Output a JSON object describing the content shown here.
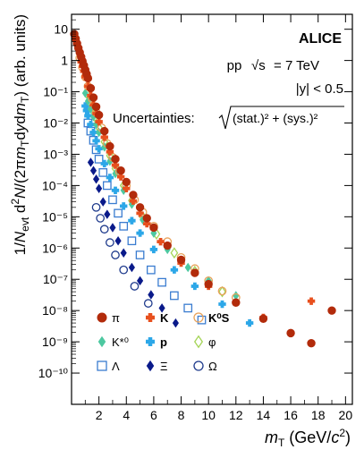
{
  "chart_data": {
    "type": "scatter",
    "experiment": "ALICE",
    "annotations": {
      "system": "pp",
      "energy": "7 TeV",
      "sqrt_s": "√s",
      "rapidity": "|y| < 0.5",
      "uncertainties": "Uncertainties:",
      "unc_formula": "(stat.)² + (sys.)²"
    },
    "xlabel": "m_T (GeV/c²)",
    "ylabel": "1/N_evt d²N/(2πm_T dy dm_T) (arb. units)",
    "xlim": [
      0,
      20.5
    ],
    "ylim": [
      1e-11,
      30
    ],
    "y_scale": "log",
    "x_ticks": [
      2,
      4,
      6,
      8,
      10,
      12,
      14,
      16,
      18,
      20
    ],
    "y_ticks": [
      {
        "v": 10,
        "label": "10"
      },
      {
        "v": 1,
        "label": "1"
      },
      {
        "v": 0.1,
        "label": "10⁻¹"
      },
      {
        "v": 0.01,
        "label": "10⁻²"
      },
      {
        "v": 0.001,
        "label": "10⁻³"
      },
      {
        "v": 0.0001,
        "label": "10⁻⁴"
      },
      {
        "v": 1e-05,
        "label": "10⁻⁵"
      },
      {
        "v": 1e-06,
        "label": "10⁻⁶"
      },
      {
        "v": 1e-07,
        "label": "10⁻⁷"
      },
      {
        "v": 1e-08,
        "label": "10⁻⁸"
      },
      {
        "v": 1e-09,
        "label": "10⁻⁹"
      },
      {
        "v": 1e-10,
        "label": "10⁻¹⁰"
      }
    ],
    "legend_position": "bottom-left",
    "series": [
      {
        "name": "π",
        "marker": "circle-filled",
        "color": "#b22b0b",
        "points": [
          [
            0.2,
            7
          ],
          [
            0.3,
            5
          ],
          [
            0.4,
            3.5
          ],
          [
            0.5,
            2.5
          ],
          [
            0.6,
            1.8
          ],
          [
            0.7,
            1.3
          ],
          [
            0.8,
            0.95
          ],
          [
            0.9,
            0.7
          ],
          [
            1.0,
            0.5
          ],
          [
            1.1,
            0.37
          ],
          [
            1.2,
            0.27
          ],
          [
            1.4,
            0.13
          ],
          [
            1.6,
            0.065
          ],
          [
            1.8,
            0.033
          ],
          [
            2.0,
            0.018
          ],
          [
            2.4,
            0.0055
          ],
          [
            2.8,
            0.0018
          ],
          [
            3.2,
            0.0007
          ],
          [
            3.6,
            0.0003
          ],
          [
            4.0,
            0.00013
          ],
          [
            4.5,
            5e-05
          ],
          [
            5.0,
            2e-05
          ],
          [
            5.5,
            9e-06
          ],
          [
            6.0,
            4.5e-06
          ],
          [
            7.0,
            1.2e-06
          ],
          [
            8.0,
            4.2e-07
          ],
          [
            9.0,
            1.6e-07
          ],
          [
            10.0,
            7e-08
          ],
          [
            12.0,
            1.8e-08
          ],
          [
            14.0,
            5.5e-09
          ],
          [
            16.0,
            1.9e-09
          ],
          [
            17.5,
            9e-10
          ],
          [
            19.0,
            1e-08
          ]
        ]
      },
      {
        "name": "K",
        "marker": "cross-filled",
        "color": "#e8501e",
        "points": [
          [
            0.7,
            0.9
          ],
          [
            0.8,
            0.65
          ],
          [
            0.9,
            0.45
          ],
          [
            1.0,
            0.3
          ],
          [
            1.2,
            0.15
          ],
          [
            1.4,
            0.075
          ],
          [
            1.6,
            0.038
          ],
          [
            1.8,
            0.02
          ],
          [
            2.0,
            0.011
          ],
          [
            2.4,
            0.0035
          ],
          [
            2.8,
            0.0012
          ],
          [
            3.2,
            0.00045
          ],
          [
            3.6,
            0.00019
          ],
          [
            4.0,
            8e-05
          ],
          [
            4.5,
            3.2e-05
          ],
          [
            5.0,
            1.3e-05
          ],
          [
            5.5,
            6e-06
          ],
          [
            6.5,
            1.6e-06
          ],
          [
            8.0,
            3.3e-07
          ],
          [
            10.0,
            6e-08
          ],
          [
            12.0,
            1.8e-08
          ],
          [
            14.0,
            6e-09
          ],
          [
            17.5,
            2e-08
          ]
        ]
      },
      {
        "name": "K⁰S",
        "marker": "circle-open",
        "color": "#e8a25a",
        "points": [
          [
            0.6,
            1.2
          ],
          [
            0.8,
            0.6
          ],
          [
            1.0,
            0.3
          ],
          [
            1.2,
            0.15
          ],
          [
            1.5,
            0.06
          ],
          [
            1.8,
            0.022
          ],
          [
            2.2,
            0.007
          ],
          [
            2.6,
            0.0022
          ],
          [
            3.0,
            0.0008
          ],
          [
            3.5,
            0.00028
          ],
          [
            4.0,
            0.0001
          ],
          [
            4.6,
            3.5e-05
          ],
          [
            5.2,
            1.4e-05
          ],
          [
            6.0,
            5e-06
          ],
          [
            7.0,
            1.6e-06
          ],
          [
            8.0,
            5e-07
          ],
          [
            9.0,
            2.2e-07
          ],
          [
            10.0,
            9e-08
          ],
          [
            11.0,
            4.2e-08
          ],
          [
            12.0,
            2.6e-08
          ]
        ]
      },
      {
        "name": "K*⁰",
        "marker": "diamond-filled",
        "color": "#4dc8a0",
        "points": [
          [
            1.0,
            0.09
          ],
          [
            1.2,
            0.05
          ],
          [
            1.4,
            0.028
          ],
          [
            1.6,
            0.016
          ],
          [
            1.8,
            0.009
          ],
          [
            2.0,
            0.005
          ],
          [
            2.4,
            0.0017
          ],
          [
            2.8,
            0.0006
          ],
          [
            3.2,
            0.00024
          ],
          [
            3.8,
            7e-05
          ],
          [
            4.4,
            2.5e-05
          ],
          [
            5.2,
            8e-06
          ],
          [
            6.0,
            3e-06
          ],
          [
            7.0,
            9e-07
          ],
          [
            8.5,
            2.4e-07
          ],
          [
            10.0,
            9e-08
          ],
          [
            12.0,
            3e-08
          ]
        ]
      },
      {
        "name": "p",
        "marker": "cross-filled",
        "color": "#2ca7e8",
        "points": [
          [
            1.0,
            0.035
          ],
          [
            1.1,
            0.025
          ],
          [
            1.2,
            0.017
          ],
          [
            1.4,
            0.009
          ],
          [
            1.6,
            0.005
          ],
          [
            1.8,
            0.0027
          ],
          [
            2.0,
            0.0015
          ],
          [
            2.4,
            0.0005
          ],
          [
            2.8,
            0.00018
          ],
          [
            3.2,
            7e-05
          ],
          [
            3.8,
            2.2e-05
          ],
          [
            4.4,
            7.5e-06
          ],
          [
            5.0,
            3e-06
          ],
          [
            6.0,
            9e-07
          ],
          [
            7.5,
            2e-07
          ],
          [
            9.0,
            6e-08
          ],
          [
            11.0,
            1.6e-08
          ],
          [
            13.0,
            4e-09
          ]
        ]
      },
      {
        "name": "φ",
        "marker": "diamond-open",
        "color": "#a4d456",
        "points": [
          [
            1.1,
            0.09
          ],
          [
            1.3,
            0.05
          ],
          [
            1.5,
            0.028
          ],
          [
            1.7,
            0.016
          ],
          [
            2.0,
            0.007
          ],
          [
            2.4,
            0.0025
          ],
          [
            2.8,
            0.0009
          ],
          [
            3.2,
            0.00035
          ],
          [
            3.8,
            0.0001
          ],
          [
            4.4,
            3.3e-05
          ],
          [
            5.2,
            1e-05
          ],
          [
            6.2,
            2.8e-06
          ],
          [
            7.5,
            7e-07
          ],
          [
            9.0,
            1.8e-07
          ],
          [
            11.0,
            4e-08
          ]
        ]
      },
      {
        "name": "Λ",
        "marker": "square-open",
        "color": "#3a7cd0",
        "points": [
          [
            1.2,
            0.01
          ],
          [
            1.4,
            0.0055
          ],
          [
            1.6,
            0.0028
          ],
          [
            1.8,
            0.0014
          ],
          [
            2.0,
            0.0007
          ],
          [
            2.3,
            0.00026
          ],
          [
            2.6,
            0.0001
          ],
          [
            3.0,
            3.5e-05
          ],
          [
            3.4,
            1.3e-05
          ],
          [
            3.8,
            5e-06
          ],
          [
            4.4,
            1.7e-06
          ],
          [
            5.0,
            6e-07
          ],
          [
            5.8,
            2e-07
          ],
          [
            6.6,
            8e-08
          ],
          [
            7.5,
            3e-08
          ],
          [
            8.5,
            1.2e-08
          ],
          [
            9.5,
            5e-09
          ]
        ]
      },
      {
        "name": "Ξ",
        "marker": "diamond-filled",
        "color": "#0a1a8a",
        "points": [
          [
            1.4,
            0.00055
          ],
          [
            1.6,
            0.0003
          ],
          [
            1.8,
            0.00016
          ],
          [
            2.0,
            8e-05
          ],
          [
            2.3,
            3e-05
          ],
          [
            2.6,
            1.2e-05
          ],
          [
            3.0,
            4.5e-06
          ],
          [
            3.4,
            1.7e-06
          ],
          [
            3.8,
            7e-07
          ],
          [
            4.4,
            2.4e-07
          ],
          [
            5.0,
            9e-08
          ],
          [
            5.8,
            3.2e-08
          ],
          [
            6.6,
            1.2e-08
          ],
          [
            7.6,
            4e-09
          ]
        ]
      },
      {
        "name": "Ω",
        "marker": "circle-open",
        "color": "#1e3a8c",
        "points": [
          [
            1.8,
            2e-05
          ],
          [
            2.1,
            9e-06
          ],
          [
            2.4,
            4e-06
          ],
          [
            2.8,
            1.5e-06
          ],
          [
            3.2,
            6e-07
          ],
          [
            3.8,
            2e-07
          ],
          [
            4.6,
            6e-08
          ],
          [
            5.6,
            1.7e-08
          ]
        ]
      }
    ]
  }
}
